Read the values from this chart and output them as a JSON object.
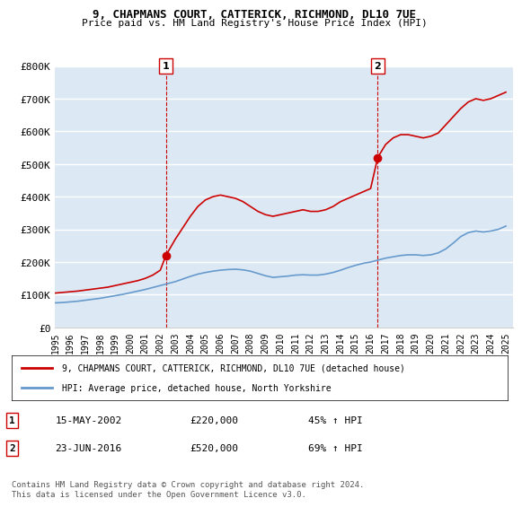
{
  "title": "9, CHAPMANS COURT, CATTERICK, RICHMOND, DL10 7UE",
  "subtitle": "Price paid vs. HM Land Registry's House Price Index (HPI)",
  "xlabel": "",
  "ylabel": "",
  "ylim": [
    0,
    800000
  ],
  "yticks": [
    0,
    100000,
    200000,
    300000,
    400000,
    500000,
    600000,
    700000,
    800000
  ],
  "ytick_labels": [
    "£0",
    "£100K",
    "£200K",
    "£300K",
    "£400K",
    "£500K",
    "£600K",
    "£700K",
    "£800K"
  ],
  "xlim_start": 1995.0,
  "xlim_end": 2025.5,
  "bg_color": "#dce9f5",
  "plot_bg_color": "#dce9f5",
  "grid_color": "#ffffff",
  "red_color": "#cc0000",
  "blue_color": "#6699cc",
  "marker1_x": 2002.37,
  "marker1_y": 220000,
  "marker2_x": 2016.47,
  "marker2_y": 520000,
  "legend_label1": "9, CHAPMANS COURT, CATTERICK, RICHMOND, DL10 7UE (detached house)",
  "legend_label2": "HPI: Average price, detached house, North Yorkshire",
  "ann1_date": "15-MAY-2002",
  "ann1_price": "£220,000",
  "ann1_hpi": "45% ↑ HPI",
  "ann2_date": "23-JUN-2016",
  "ann2_price": "£520,000",
  "ann2_hpi": "69% ↑ HPI",
  "footer": "Contains HM Land Registry data © Crown copyright and database right 2024.\nThis data is licensed under the Open Government Licence v3.0.",
  "red_x": [
    1995.0,
    1995.5,
    1996.0,
    1996.5,
    1997.0,
    1997.5,
    1998.0,
    1998.5,
    1999.0,
    1999.5,
    2000.0,
    2000.5,
    2001.0,
    2001.5,
    2002.0,
    2002.37,
    2002.37,
    2003.0,
    2003.5,
    2004.0,
    2004.5,
    2005.0,
    2005.5,
    2006.0,
    2006.5,
    2007.0,
    2007.5,
    2008.0,
    2008.5,
    2009.0,
    2009.5,
    2010.0,
    2010.5,
    2011.0,
    2011.5,
    2012.0,
    2012.5,
    2013.0,
    2013.5,
    2014.0,
    2014.5,
    2015.0,
    2015.5,
    2016.0,
    2016.47,
    2016.47,
    2017.0,
    2017.5,
    2018.0,
    2018.5,
    2019.0,
    2019.5,
    2020.0,
    2020.5,
    2021.0,
    2021.5,
    2022.0,
    2022.5,
    2023.0,
    2023.5,
    2024.0,
    2024.5,
    2025.0
  ],
  "red_y": [
    105000,
    107000,
    109000,
    111000,
    114000,
    117000,
    120000,
    123000,
    128000,
    133000,
    138000,
    143000,
    150000,
    160000,
    175000,
    220000,
    220000,
    270000,
    305000,
    340000,
    370000,
    390000,
    400000,
    405000,
    400000,
    395000,
    385000,
    370000,
    355000,
    345000,
    340000,
    345000,
    350000,
    355000,
    360000,
    355000,
    355000,
    360000,
    370000,
    385000,
    395000,
    405000,
    415000,
    425000,
    520000,
    520000,
    560000,
    580000,
    590000,
    590000,
    585000,
    580000,
    585000,
    595000,
    620000,
    645000,
    670000,
    690000,
    700000,
    695000,
    700000,
    710000,
    720000
  ],
  "blue_x": [
    1995.0,
    1995.5,
    1996.0,
    1996.5,
    1997.0,
    1997.5,
    1998.0,
    1998.5,
    1999.0,
    1999.5,
    2000.0,
    2000.5,
    2001.0,
    2001.5,
    2002.0,
    2002.5,
    2003.0,
    2003.5,
    2004.0,
    2004.5,
    2005.0,
    2005.5,
    2006.0,
    2006.5,
    2007.0,
    2007.5,
    2008.0,
    2008.5,
    2009.0,
    2009.5,
    2010.0,
    2010.5,
    2011.0,
    2011.5,
    2012.0,
    2012.5,
    2013.0,
    2013.5,
    2014.0,
    2014.5,
    2015.0,
    2015.5,
    2016.0,
    2016.5,
    2017.0,
    2017.5,
    2018.0,
    2018.5,
    2019.0,
    2019.5,
    2020.0,
    2020.5,
    2021.0,
    2021.5,
    2022.0,
    2022.5,
    2023.0,
    2023.5,
    2024.0,
    2024.5,
    2025.0
  ],
  "blue_y": [
    75000,
    76000,
    78000,
    80000,
    83000,
    86000,
    89000,
    93000,
    97000,
    101000,
    106000,
    111000,
    116000,
    122000,
    128000,
    134000,
    140000,
    148000,
    156000,
    163000,
    168000,
    172000,
    175000,
    177000,
    178000,
    176000,
    172000,
    165000,
    158000,
    153000,
    155000,
    157000,
    160000,
    161000,
    160000,
    160000,
    163000,
    168000,
    175000,
    183000,
    190000,
    196000,
    200000,
    206000,
    212000,
    216000,
    220000,
    222000,
    222000,
    220000,
    222000,
    228000,
    240000,
    258000,
    278000,
    290000,
    295000,
    292000,
    295000,
    300000,
    310000
  ]
}
